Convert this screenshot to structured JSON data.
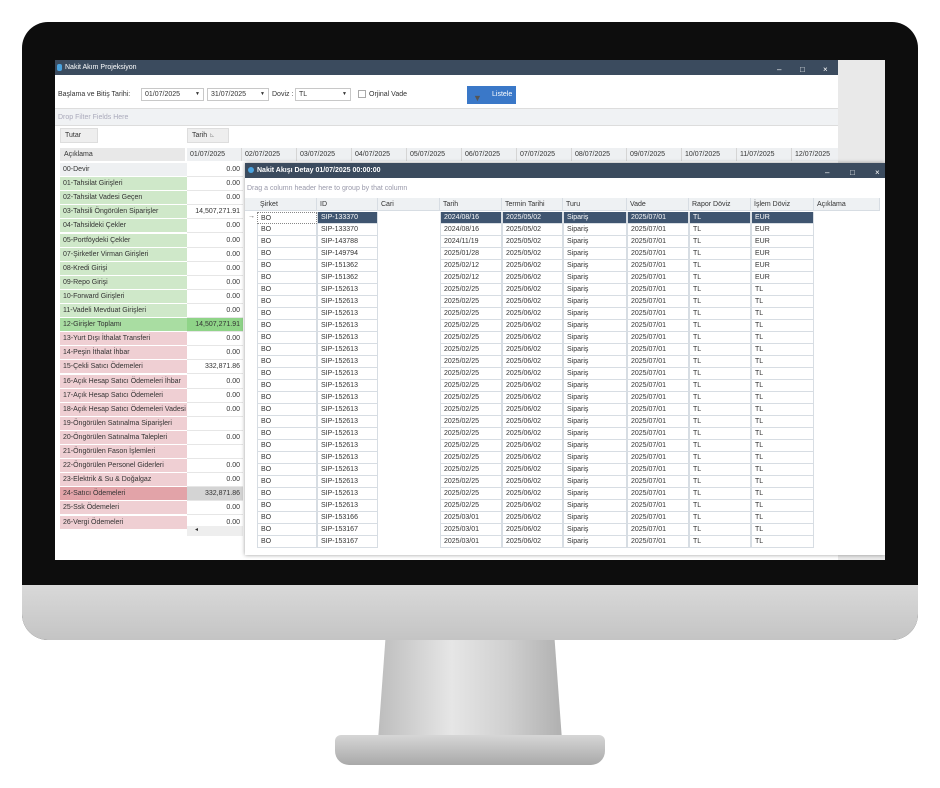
{
  "main": {
    "title": "Nakit Akım Projeksiyon",
    "date_label": "Başlama ve Bitiş Tarihi:",
    "start_date": "01/07/2025",
    "end_date": "31/07/2025",
    "currency_label": "Doviz :",
    "currency": "TL",
    "original_due_label": "Orjinal Vade",
    "list_button": "Listele",
    "drop_filter": "Drop Filter Fields Here",
    "tutar": "Tutar",
    "tarih": "Tarih",
    "aciklama": "Açıklama",
    "dates": [
      "01/07/2025",
      "02/07/2025",
      "03/07/2025",
      "04/07/2025",
      "05/07/2025",
      "06/07/2025",
      "07/07/2025",
      "08/07/2025",
      "09/07/2025",
      "10/07/2025",
      "11/07/2025",
      "12/07/2025"
    ],
    "rows": [
      {
        "label": "00-Devir",
        "value": "0.00",
        "type": "n"
      },
      {
        "label": "01-Tahsilat Girişleri",
        "value": "0.00",
        "type": "g"
      },
      {
        "label": "02-Tahsilat Vadesi Geçen",
        "value": "0.00",
        "type": "g"
      },
      {
        "label": "03-Tahsili Öngörülen Siparişler",
        "value": "14,507,271.91",
        "type": "g"
      },
      {
        "label": "04-Tahsildeki Çekler",
        "value": "0.00",
        "type": "g"
      },
      {
        "label": "05-Portföydeki Çekler",
        "value": "0.00",
        "type": "g"
      },
      {
        "label": "07-Şirketler Virman Girişleri",
        "value": "0.00",
        "type": "g"
      },
      {
        "label": "08-Kredi Girişi",
        "value": "0.00",
        "type": "g"
      },
      {
        "label": "09-Repo Girişi",
        "value": "0.00",
        "type": "g"
      },
      {
        "label": "10-Forward Girişleri",
        "value": "0.00",
        "type": "g"
      },
      {
        "label": "11-Vadeli Mevduat Girişleri",
        "value": "0.00",
        "type": "g"
      },
      {
        "label": "12-Girişler Toplamı",
        "value": "14,507,271.91",
        "type": "gt"
      },
      {
        "label": "13-Yurt Dışı İthalat Transferi",
        "value": "0.00",
        "type": "r"
      },
      {
        "label": "14-Peşin İthalat İhbar",
        "value": "0.00",
        "type": "r"
      },
      {
        "label": "15-Çekli Satıcı Ödemeleri",
        "value": "332,871.86",
        "type": "r"
      },
      {
        "label": "16-Açık Hesap Satıcı Ödemeleri İhbar",
        "value": "0.00",
        "type": "r"
      },
      {
        "label": "17-Açık Hesap Satıcı Ödemeleri",
        "value": "0.00",
        "type": "r"
      },
      {
        "label": "18-Açık Hesap Satıcı Ödemeleri Vadesi Geçen",
        "value": "0.00",
        "type": "r"
      },
      {
        "label": "19-Öngörülen Satınalma Siparişleri",
        "value": "",
        "type": "r"
      },
      {
        "label": "20-Öngörülen Satınalma Talepleri",
        "value": "0.00",
        "type": "r"
      },
      {
        "label": "21-Öngörülen Fason İşlemleri",
        "value": "",
        "type": "r"
      },
      {
        "label": "22-Öngörülen Personel Giderleri",
        "value": "0.00",
        "type": "r"
      },
      {
        "label": "23-Elektrik & Su & Doğalgaz",
        "value": "0.00",
        "type": "r"
      },
      {
        "label": "24-Satıcı Ödemeleri",
        "value": "332,871.86",
        "type": "rt"
      },
      {
        "label": "25-Ssk Ödemeleri",
        "value": "0.00",
        "type": "r"
      },
      {
        "label": "26-Vergi Ödemeleri",
        "value": "0.00",
        "type": "r"
      }
    ]
  },
  "popup": {
    "title": "Nakit Akışı Detay 01/07/2025 00:00:00",
    "group_hint": "Drag a column header here to group by that column",
    "columns": [
      "Şirket",
      "ID",
      "Cari",
      "Tarih",
      "Termin Tarihi",
      "Turu",
      "Vade",
      "Rapor Döviz",
      "İşlem Döviz",
      "Açıklama"
    ],
    "rows": [
      [
        "BO",
        "SIP-133370",
        "",
        "2024/08/16",
        "2025/05/02",
        "Sipariş",
        "2025/07/01",
        "TL",
        "EUR"
      ],
      [
        "BO",
        "SIP-133370",
        "",
        "2024/08/16",
        "2025/05/02",
        "Sipariş",
        "2025/07/01",
        "TL",
        "EUR"
      ],
      [
        "BO",
        "SIP-143788",
        "",
        "2024/11/19",
        "2025/05/02",
        "Sipariş",
        "2025/07/01",
        "TL",
        "EUR"
      ],
      [
        "BO",
        "SIP-149794",
        "",
        "2025/01/28",
        "2025/05/02",
        "Sipariş",
        "2025/07/01",
        "TL",
        "EUR"
      ],
      [
        "BO",
        "SIP-151362",
        "",
        "2025/02/12",
        "2025/06/02",
        "Sipariş",
        "2025/07/01",
        "TL",
        "EUR"
      ],
      [
        "BO",
        "SIP-151362",
        "",
        "2025/02/12",
        "2025/06/02",
        "Sipariş",
        "2025/07/01",
        "TL",
        "EUR"
      ],
      [
        "BO",
        "SIP-152613",
        "",
        "2025/02/25",
        "2025/06/02",
        "Sipariş",
        "2025/07/01",
        "TL",
        "TL"
      ],
      [
        "BO",
        "SIP-152613",
        "",
        "2025/02/25",
        "2025/06/02",
        "Sipariş",
        "2025/07/01",
        "TL",
        "TL"
      ],
      [
        "BO",
        "SIP-152613",
        "",
        "2025/02/25",
        "2025/06/02",
        "Sipariş",
        "2025/07/01",
        "TL",
        "TL"
      ],
      [
        "BO",
        "SIP-152613",
        "",
        "2025/02/25",
        "2025/06/02",
        "Sipariş",
        "2025/07/01",
        "TL",
        "TL"
      ],
      [
        "BO",
        "SIP-152613",
        "",
        "2025/02/25",
        "2025/06/02",
        "Sipariş",
        "2025/07/01",
        "TL",
        "TL"
      ],
      [
        "BO",
        "SIP-152613",
        "",
        "2025/02/25",
        "2025/06/02",
        "Sipariş",
        "2025/07/01",
        "TL",
        "TL"
      ],
      [
        "BO",
        "SIP-152613",
        "",
        "2025/02/25",
        "2025/06/02",
        "Sipariş",
        "2025/07/01",
        "TL",
        "TL"
      ],
      [
        "BO",
        "SIP-152613",
        "",
        "2025/02/25",
        "2025/06/02",
        "Sipariş",
        "2025/07/01",
        "TL",
        "TL"
      ],
      [
        "BO",
        "SIP-152613",
        "",
        "2025/02/25",
        "2025/06/02",
        "Sipariş",
        "2025/07/01",
        "TL",
        "TL"
      ],
      [
        "BO",
        "SIP-152613",
        "",
        "2025/02/25",
        "2025/06/02",
        "Sipariş",
        "2025/07/01",
        "TL",
        "TL"
      ],
      [
        "BO",
        "SIP-152613",
        "",
        "2025/02/25",
        "2025/06/02",
        "Sipariş",
        "2025/07/01",
        "TL",
        "TL"
      ],
      [
        "BO",
        "SIP-152613",
        "",
        "2025/02/25",
        "2025/06/02",
        "Sipariş",
        "2025/07/01",
        "TL",
        "TL"
      ],
      [
        "BO",
        "SIP-152613",
        "",
        "2025/02/25",
        "2025/06/02",
        "Sipariş",
        "2025/07/01",
        "TL",
        "TL"
      ],
      [
        "BO",
        "SIP-152613",
        "",
        "2025/02/25",
        "2025/06/02",
        "Sipariş",
        "2025/07/01",
        "TL",
        "TL"
      ],
      [
        "BO",
        "SIP-152613",
        "",
        "2025/02/25",
        "2025/06/02",
        "Sipariş",
        "2025/07/01",
        "TL",
        "TL"
      ],
      [
        "BO",
        "SIP-152613",
        "",
        "2025/02/25",
        "2025/06/02",
        "Sipariş",
        "2025/07/01",
        "TL",
        "TL"
      ],
      [
        "BO",
        "SIP-152613",
        "",
        "2025/02/25",
        "2025/06/02",
        "Sipariş",
        "2025/07/01",
        "TL",
        "TL"
      ],
      [
        "BO",
        "SIP-152613",
        "",
        "2025/02/25",
        "2025/06/02",
        "Sipariş",
        "2025/07/01",
        "TL",
        "TL"
      ],
      [
        "BO",
        "SIP-152613",
        "",
        "2025/02/25",
        "2025/06/02",
        "Sipariş",
        "2025/07/01",
        "TL",
        "TL"
      ],
      [
        "BO",
        "SIP-153166",
        "",
        "2025/03/01",
        "2025/06/02",
        "Sipariş",
        "2025/07/01",
        "TL",
        "TL"
      ],
      [
        "BO",
        "SIP-153167",
        "",
        "2025/03/01",
        "2025/06/02",
        "Sipariş",
        "2025/07/01",
        "TL",
        "TL"
      ],
      [
        "BO",
        "SIP-153167",
        "",
        "2025/03/01",
        "2025/06/02",
        "Sipariş",
        "2025/07/01",
        "TL",
        "TL"
      ]
    ]
  },
  "colors": {
    "title_bar": "#3b4b5e",
    "accent": "#3a78c8",
    "income": "#cfe8c9",
    "income_total": "#8fd488",
    "expense": "#efcfd3",
    "expense_total": "#e09a9f",
    "selected": "#3f5570"
  }
}
